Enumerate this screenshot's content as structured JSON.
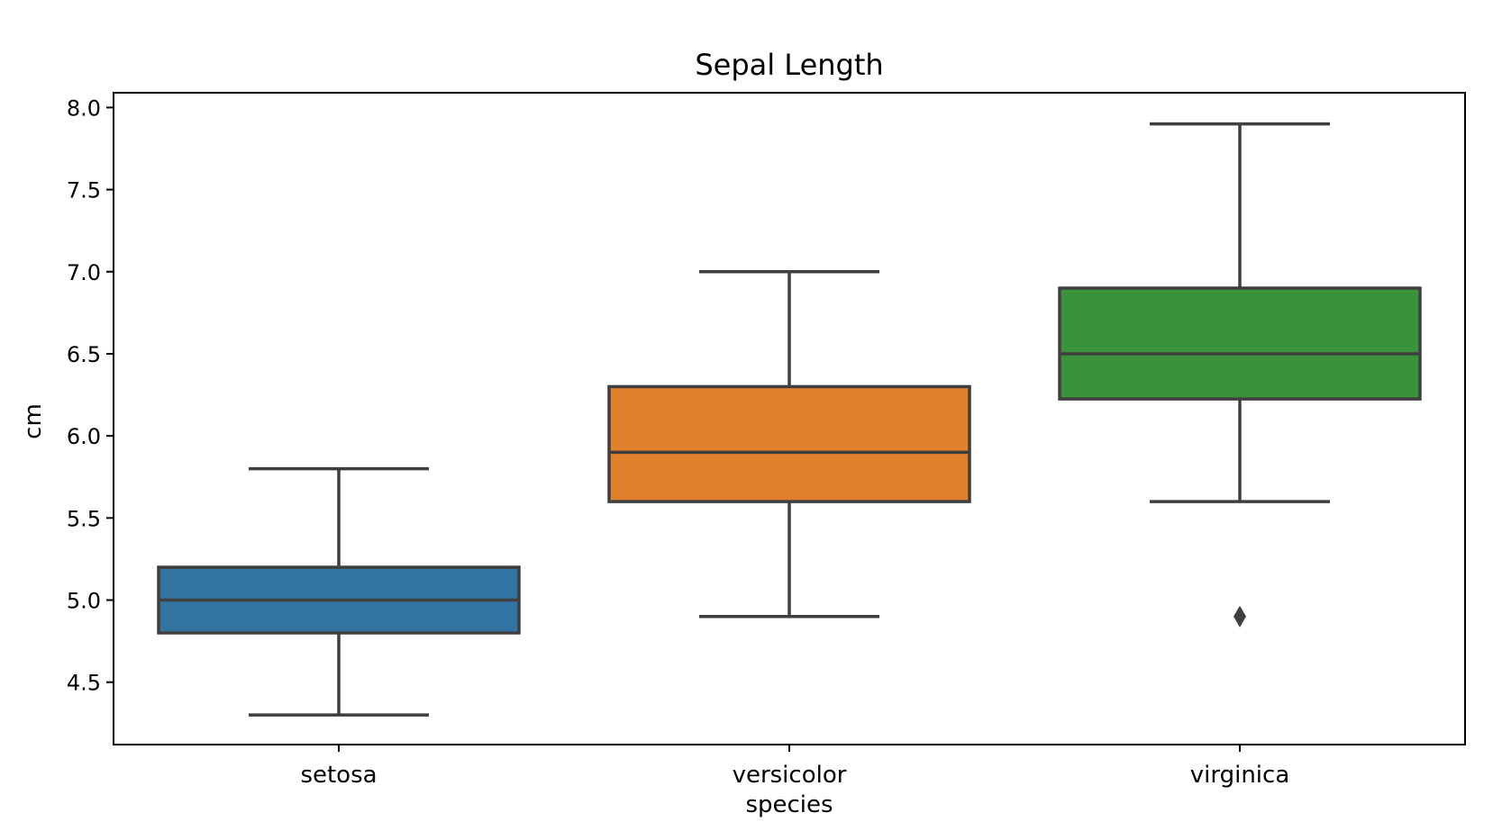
{
  "chart_data": {
    "type": "box",
    "title": "Sepal Length",
    "xlabel": "species",
    "ylabel": "cm",
    "ylim": [
      4.12,
      8.09
    ],
    "yticks": [
      "4.5",
      "5.0",
      "5.5",
      "6.0",
      "6.5",
      "7.0",
      "7.5",
      "8.0"
    ],
    "categories": [
      "setosa",
      "versicolor",
      "virginica"
    ],
    "colors": [
      "#3274a1",
      "#e1812c",
      "#3a923a"
    ],
    "line_color": "#3f3f3f",
    "boxes": [
      {
        "category": "setosa",
        "whisker_low": 4.3,
        "q1": 4.8,
        "median": 5.0,
        "q3": 5.2,
        "whisker_high": 5.8,
        "outliers": []
      },
      {
        "category": "versicolor",
        "whisker_low": 4.9,
        "q1": 5.6,
        "median": 5.9,
        "q3": 6.3,
        "whisker_high": 7.0,
        "outliers": []
      },
      {
        "category": "virginica",
        "whisker_low": 5.6,
        "q1": 6.225,
        "median": 6.5,
        "q3": 6.9,
        "whisker_high": 7.9,
        "outliers": [
          4.9
        ]
      }
    ],
    "grid": false,
    "legend": "none"
  }
}
